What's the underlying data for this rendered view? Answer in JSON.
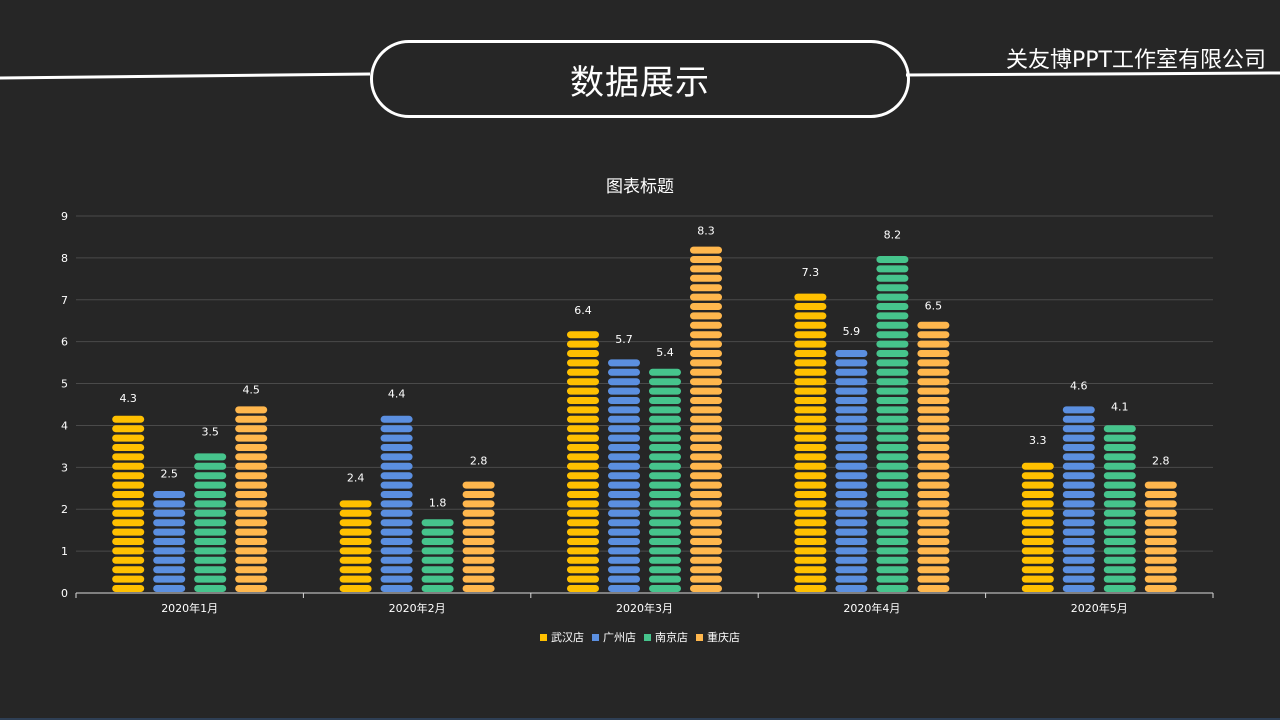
{
  "header": {
    "title": "数据展示",
    "company": "关友博PPT工作室有限公司"
  },
  "chart_data": {
    "type": "bar",
    "title": "图表标题",
    "categories": [
      "2020年1月",
      "2020年2月",
      "2020年3月",
      "2020年4月",
      "2020年5月"
    ],
    "series": [
      {
        "name": "武汉店",
        "color": "#ffc000",
        "values": [
          4.3,
          2.4,
          6.4,
          7.3,
          3.3
        ]
      },
      {
        "name": "广州店",
        "color": "#5b8fe0",
        "values": [
          2.5,
          4.4,
          5.7,
          5.9,
          4.6
        ]
      },
      {
        "name": "南京店",
        "color": "#46c48c",
        "values": [
          3.5,
          1.8,
          5.4,
          8.2,
          4.1
        ]
      },
      {
        "name": "重庆店",
        "color": "#ffb74d",
        "values": [
          4.5,
          2.8,
          8.3,
          6.5,
          2.8
        ]
      }
    ],
    "ylim": [
      0,
      9
    ],
    "yticks": [
      0,
      1,
      2,
      3,
      4,
      5,
      6,
      7,
      8,
      9
    ],
    "grid": true,
    "legend_position": "bottom",
    "data_labels": true
  }
}
